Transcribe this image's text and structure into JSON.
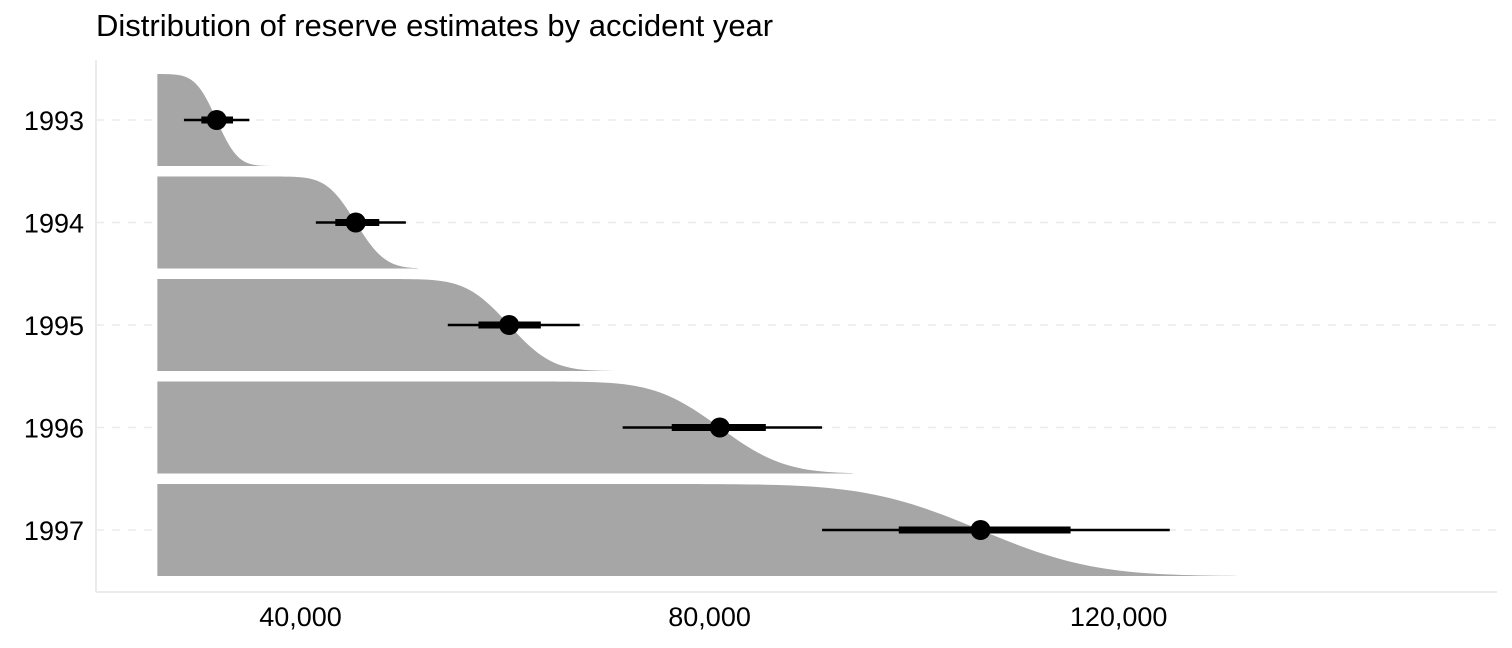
{
  "chart_data": {
    "type": "distribution-interval",
    "title": "Distribution of reserve estimates by accident year",
    "subtitle": "",
    "xlabel": "",
    "ylabel": "",
    "xlim": [
      20000,
      157000
    ],
    "x_ticks": [
      40000,
      80000,
      120000
    ],
    "x_tick_labels": [
      "40,000",
      "80,000",
      "120,000"
    ],
    "grid": "horizontal dashed at categories",
    "legend": "none",
    "colors": {
      "distribution_fill": "#a6a6a6",
      "interval": "#000000",
      "grid": "#ebebeb",
      "axis": "#ebebeb"
    },
    "categories": [
      "1993",
      "1994",
      "1995",
      "1996",
      "1997"
    ],
    "series": [
      {
        "category": "1993",
        "distribution_range": [
          26000,
          37000
        ],
        "median": 31800,
        "interval_66": [
          30300,
          33400
        ],
        "interval_95": [
          28600,
          35000
        ]
      },
      {
        "category": "1994",
        "distribution_range": [
          26000,
          51500
        ],
        "median": 45400,
        "interval_66": [
          43400,
          47700
        ],
        "interval_95": [
          41500,
          50300
        ]
      },
      {
        "category": "1995",
        "distribution_range": [
          26000,
          70500
        ],
        "median": 60400,
        "interval_66": [
          57400,
          63500
        ],
        "interval_95": [
          54400,
          67300
        ]
      },
      {
        "category": "1996",
        "distribution_range": [
          26000,
          94000
        ],
        "median": 81000,
        "interval_66": [
          76300,
          85500
        ],
        "interval_95": [
          71500,
          91000
        ]
      },
      {
        "category": "1997",
        "distribution_range": [
          26000,
          131500
        ],
        "median": 106500,
        "interval_66": [
          98500,
          115300
        ],
        "interval_95": [
          91000,
          125000
        ]
      }
    ]
  }
}
